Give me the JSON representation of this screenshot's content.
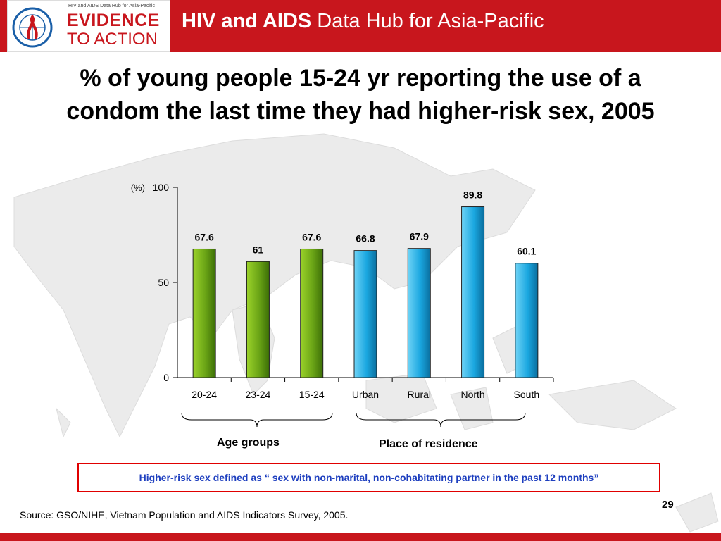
{
  "header": {
    "logo_small_text": "HIV and AIDS Data Hub for Asia-Pacific",
    "logo_line1": "EVIDENCE",
    "logo_line2": "TO ACTION",
    "title_bold": "HIV and AIDS",
    "title_rest": " Data Hub for Asia-Pacific"
  },
  "slide": {
    "title_line1": "% of young people 15-24 yr reporting the use of a",
    "title_line2": "condom the last time they had higher-risk sex, 2005"
  },
  "chart_data": {
    "type": "bar",
    "title": "% of young people 15-24 yr reporting the use of a condom the last time they had higher-risk sex, 2005",
    "ylabel": "(%)",
    "ylim": [
      0,
      100
    ],
    "yticks": [
      0,
      50,
      100
    ],
    "categories": [
      "20-24",
      "23-24",
      "15-24",
      "Urban",
      "Rural",
      "North",
      "South"
    ],
    "values": [
      67.6,
      61,
      67.6,
      66.8,
      67.9,
      89.8,
      60.1
    ],
    "value_labels": [
      "67.6",
      "61",
      "67.6",
      "66.8",
      "67.9",
      "89.8",
      "60.1"
    ],
    "groups": [
      {
        "label": "Age groups",
        "categories": [
          "20-24",
          "23-24",
          "15-24"
        ],
        "color": "#6aa416"
      },
      {
        "label": "Place of residence",
        "categories": [
          "Urban",
          "Rural",
          "North",
          "South"
        ],
        "color": "#1aa7e0"
      }
    ],
    "grid": false
  },
  "footnote": {
    "definition": "Higher-risk sex defined as “ sex with non-marital, non-cohabitating partner in the past 12 months”",
    "source": "Source: GSO/NIHE, Vietnam Population and AIDS Indicators Survey, 2005.",
    "page_number": "29"
  },
  "colors": {
    "brand_red": "#c8161d",
    "age_bar": "#6aa416",
    "residence_bar": "#1aa7e0",
    "definition_text": "#1e3fbf",
    "definition_border": "#e00000"
  }
}
